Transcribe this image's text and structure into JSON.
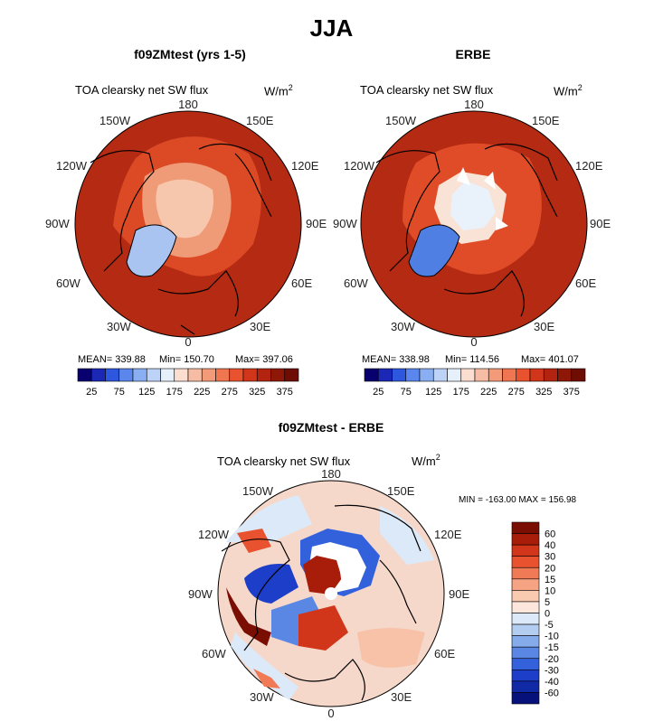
{
  "figure": {
    "title": "JJA"
  },
  "panels": [
    {
      "title": "f09ZMtest (yrs 1-5)",
      "variable": "TOA clearsky net SW flux",
      "units_base": "W/m",
      "units_exp": "2",
      "stats": {
        "mean": "MEAN= 339.88",
        "min": "Min= 150.70",
        "max": "Max= 397.06"
      }
    },
    {
      "title": "ERBE",
      "variable": "TOA clearsky net SW flux",
      "units_base": "W/m",
      "units_exp": "2",
      "stats": {
        "mean": "MEAN= 338.98",
        "min": "Min= 114.56",
        "max": "Max= 401.07"
      }
    }
  ],
  "diff_panel": {
    "title": "f09ZMtest - ERBE",
    "variable": "TOA clearsky net SW flux",
    "units_base": "W/m",
    "units_exp": "2",
    "range_text": "MIN = -163.00  MAX = 156.98"
  },
  "longitude_labels": {
    "top": "180",
    "bottom": "0",
    "left_upper": "150W",
    "left_mid_upper": "120W",
    "left_mid": "90W",
    "left_mid_lower": "60W",
    "left_lower": "30W",
    "right_upper": "150E",
    "right_mid_upper": "120E",
    "right_mid": "90E",
    "right_mid_lower": "60E",
    "right_lower": "30E"
  },
  "colorbar_abs": {
    "labels": [
      "25",
      "75",
      "125",
      "175",
      "225",
      "275",
      "325",
      "375"
    ],
    "colors": [
      "#08006e",
      "#1b27b5",
      "#2e57e0",
      "#5a86ee",
      "#8aaef2",
      "#bcd3f7",
      "#e6f0fa",
      "#fbded0",
      "#f7bda4",
      "#f39a78",
      "#ef7650",
      "#e8522e",
      "#d1361a",
      "#b32410",
      "#8f1707",
      "#6e0d03"
    ]
  },
  "colorbar_diff": {
    "labels": [
      "60",
      "40",
      "30",
      "20",
      "15",
      "10",
      "5",
      "0",
      "-5",
      "-10",
      "-15",
      "-20",
      "-30",
      "-40",
      "-60"
    ],
    "colors": [
      "#7a0e03",
      "#a81c0a",
      "#d1361a",
      "#e8522e",
      "#f07a55",
      "#f5a383",
      "#f9c9b0",
      "#fde7dc",
      "#dce9f8",
      "#b3cdf1",
      "#86abeb",
      "#5a86e4",
      "#3361dc",
      "#1c3ec8",
      "#102aa5",
      "#06127a"
    ]
  },
  "colors": {
    "ocean_dark": "#b52a12",
    "land_mid": "#dc4a25",
    "ice_light": "#f7c7ad",
    "greenland": "#a9c4f0"
  }
}
